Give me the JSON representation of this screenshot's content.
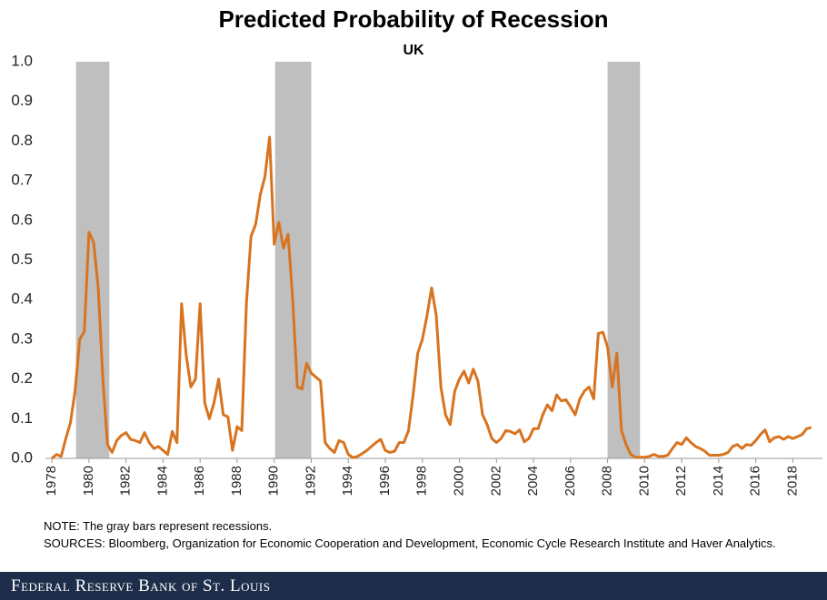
{
  "chart_data": {
    "type": "line",
    "title": "Predicted Probability of Recession",
    "subtitle": "UK",
    "x": [
      1978,
      1978.25,
      1978.5,
      1978.75,
      1979,
      1979.25,
      1979.5,
      1979.75,
      1980,
      1980.25,
      1980.5,
      1980.75,
      1981,
      1981.25,
      1981.5,
      1981.75,
      1982,
      1982.25,
      1982.5,
      1982.75,
      1983,
      1983.25,
      1983.5,
      1983.75,
      1984,
      1984.25,
      1984.5,
      1984.75,
      1985,
      1985.25,
      1985.5,
      1985.75,
      1986,
      1986.25,
      1986.5,
      1986.75,
      1987,
      1987.25,
      1987.5,
      1987.75,
      1988,
      1988.25,
      1988.5,
      1988.75,
      1989,
      1989.25,
      1989.5,
      1989.75,
      1990,
      1990.25,
      1990.5,
      1990.75,
      1991,
      1991.25,
      1991.5,
      1991.75,
      1992,
      1992.25,
      1992.5,
      1992.75,
      1993,
      1993.25,
      1993.5,
      1993.75,
      1994,
      1994.25,
      1994.5,
      1994.75,
      1995,
      1995.25,
      1995.5,
      1995.75,
      1996,
      1996.25,
      1996.5,
      1996.75,
      1997,
      1997.25,
      1997.5,
      1997.75,
      1998,
      1998.25,
      1998.5,
      1998.75,
      1999,
      1999.25,
      1999.5,
      1999.75,
      2000,
      2000.25,
      2000.5,
      2000.75,
      2001,
      2001.25,
      2001.5,
      2001.75,
      2002,
      2002.25,
      2002.5,
      2002.75,
      2003,
      2003.25,
      2003.5,
      2003.75,
      2004,
      2004.25,
      2004.5,
      2004.75,
      2005,
      2005.25,
      2005.5,
      2005.75,
      2006,
      2006.25,
      2006.5,
      2006.75,
      2007,
      2007.25,
      2007.5,
      2007.75,
      2008,
      2008.25,
      2008.5,
      2008.75,
      2009,
      2009.25,
      2009.5,
      2009.75,
      2010,
      2010.25,
      2010.5,
      2010.75,
      2011,
      2011.25,
      2011.5,
      2011.75,
      2012,
      2012.25,
      2012.5,
      2012.75,
      2013,
      2013.25,
      2013.5,
      2013.75,
      2014,
      2014.25,
      2014.5,
      2014.75,
      2015,
      2015.25,
      2015.5,
      2015.75,
      2016,
      2016.25,
      2016.5,
      2016.75,
      2017,
      2017.25,
      2017.5,
      2017.75,
      2018,
      2018.25,
      2018.5,
      2018.75,
      2019
    ],
    "series": [
      {
        "name": "UK",
        "color": "#d8731f",
        "values": [
          0.0,
          0.01,
          0.005,
          0.05,
          0.09,
          0.17,
          0.3,
          0.32,
          0.57,
          0.545,
          0.43,
          0.2,
          0.035,
          0.015,
          0.045,
          0.058,
          0.065,
          0.048,
          0.045,
          0.04,
          0.065,
          0.04,
          0.025,
          0.03,
          0.02,
          0.01,
          0.068,
          0.04,
          0.39,
          0.26,
          0.18,
          0.2,
          0.39,
          0.14,
          0.1,
          0.14,
          0.2,
          0.11,
          0.105,
          0.02,
          0.08,
          0.07,
          0.39,
          0.56,
          0.59,
          0.665,
          0.71,
          0.81,
          0.54,
          0.595,
          0.53,
          0.565,
          0.4,
          0.18,
          0.175,
          0.24,
          0.215,
          0.205,
          0.195,
          0.04,
          0.025,
          0.015,
          0.045,
          0.04,
          0.01,
          0.002,
          0.005,
          0.012,
          0.02,
          0.03,
          0.04,
          0.048,
          0.02,
          0.015,
          0.018,
          0.04,
          0.04,
          0.07,
          0.16,
          0.265,
          0.3,
          0.36,
          0.43,
          0.36,
          0.18,
          0.11,
          0.085,
          0.17,
          0.2,
          0.22,
          0.19,
          0.225,
          0.195,
          0.11,
          0.085,
          0.05,
          0.04,
          0.05,
          0.07,
          0.068,
          0.062,
          0.072,
          0.042,
          0.05,
          0.075,
          0.075,
          0.11,
          0.135,
          0.12,
          0.16,
          0.145,
          0.148,
          0.13,
          0.11,
          0.15,
          0.17,
          0.18,
          0.15,
          0.315,
          0.318,
          0.28,
          0.18,
          0.265,
          0.07,
          0.035,
          0.01,
          0.003,
          0.003,
          0.003,
          0.005,
          0.01,
          0.005,
          0.005,
          0.008,
          0.025,
          0.04,
          0.035,
          0.052,
          0.04,
          0.03,
          0.025,
          0.018,
          0.008,
          0.008,
          0.008,
          0.01,
          0.015,
          0.03,
          0.035,
          0.025,
          0.035,
          0.033,
          0.045,
          0.06,
          0.072,
          0.042,
          0.052,
          0.055,
          0.048,
          0.055,
          0.05,
          0.055,
          0.06,
          0.075,
          0.078
        ]
      }
    ],
    "recessions": [
      [
        1979.3,
        1981.1
      ],
      [
        1990.05,
        1992.0
      ],
      [
        2008.0,
        2009.75
      ]
    ],
    "recession_color": "#bfbfbf",
    "xlim": [
      1977.65,
      2019.6
    ],
    "xticks": [
      1978,
      1980,
      1982,
      1984,
      1986,
      1988,
      1990,
      1992,
      1994,
      1996,
      1998,
      2000,
      2002,
      2004,
      2006,
      2008,
      2010,
      2012,
      2014,
      2016,
      2018
    ],
    "ylim": [
      0,
      1
    ],
    "yticks": [
      {
        "value": 0,
        "label": "0.0"
      },
      0.1,
      0.2,
      0.3,
      0.4,
      0.5,
      0.6,
      0.7,
      0.8,
      0.9,
      {
        "value": 1,
        "label": "1.0"
      }
    ],
    "grid": false,
    "note": "NOTE: The gray bars represent recessions.",
    "sources": "SOURCES: Bloomberg,  Organization for Economic Cooperation and Development,  Economic Cycle Research Institute and Haver Analytics.",
    "footer": "Federal Reserve Bank of St. Louis"
  }
}
